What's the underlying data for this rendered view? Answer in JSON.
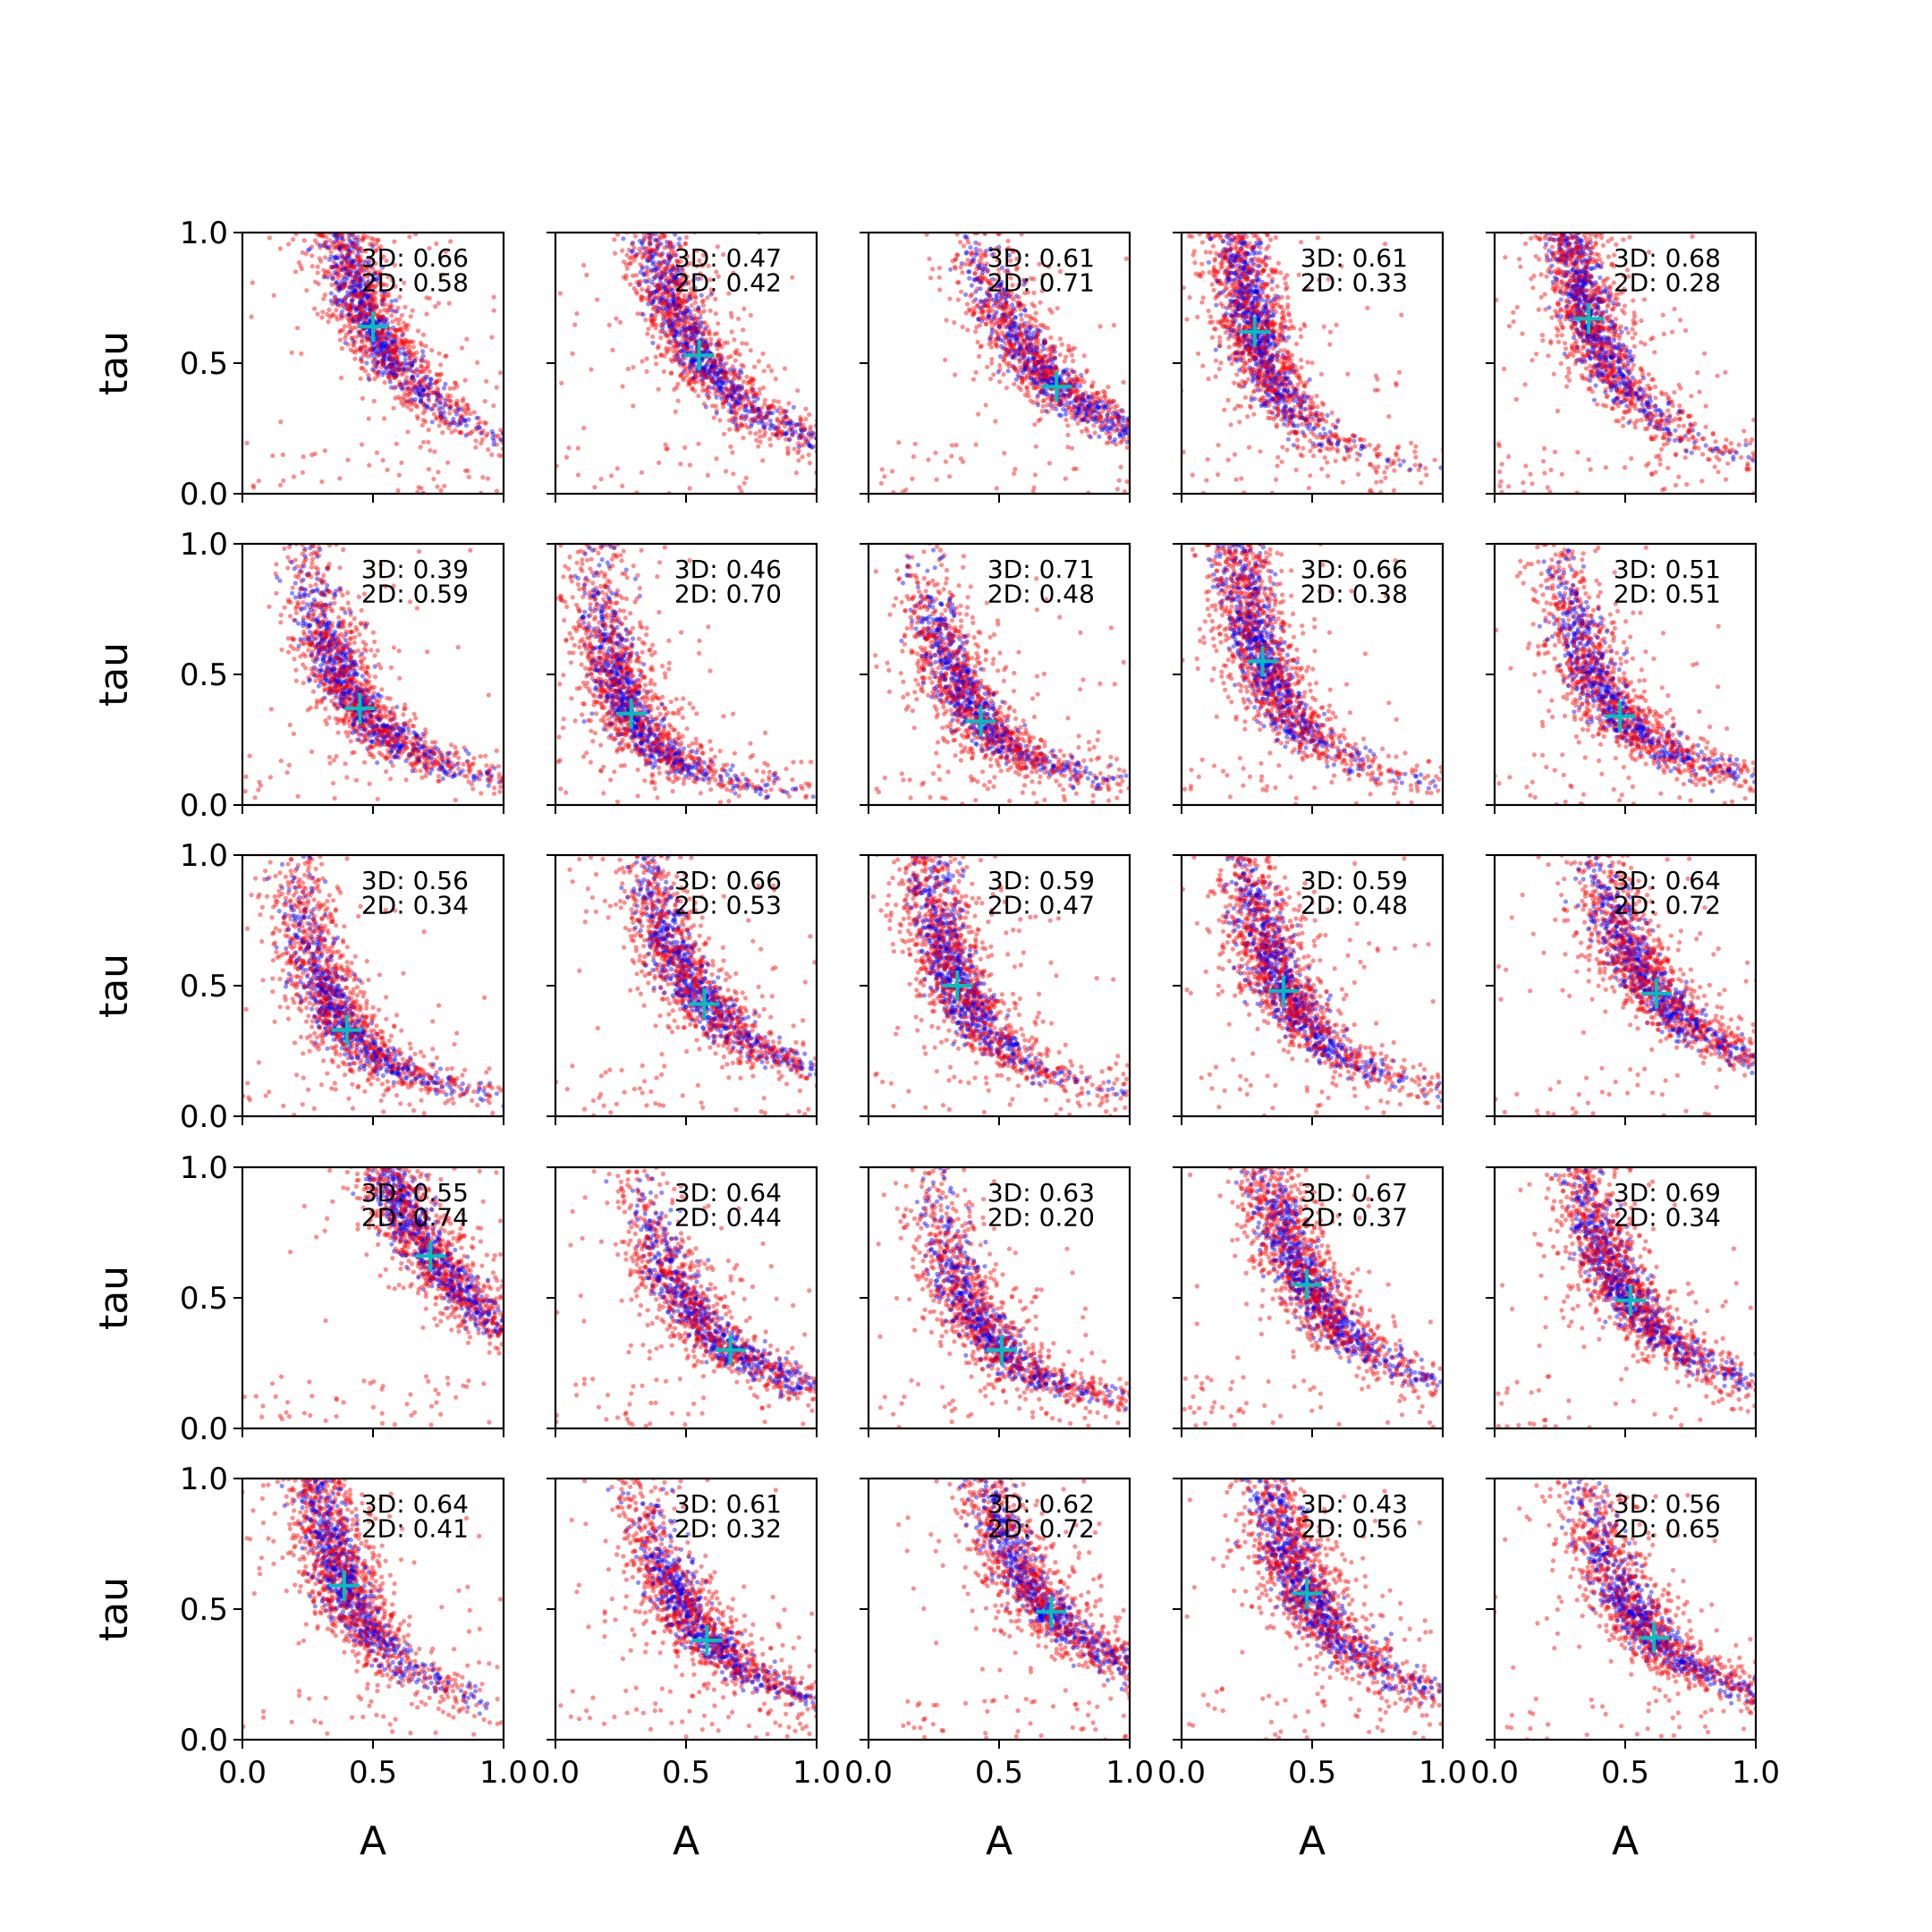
{
  "chart_data": {
    "type": "scatter",
    "layout": {
      "rows": 5,
      "cols": 5
    },
    "xlabel": "A",
    "ylabel": "tau",
    "xlim": [
      0.0,
      1.0
    ],
    "ylim": [
      0.0,
      1.0
    ],
    "xticks": [
      "0.0",
      "0.5",
      "1.0"
    ],
    "yticks": [
      "0.0",
      "0.5",
      "1.0"
    ],
    "colors": {
      "series_3d": "#0000ff",
      "series_2d": "#ff0000",
      "marker": "#00bfbf"
    },
    "panels": [
      {
        "ann3d": "3D: 0.66",
        "ann2d": "2D: 0.58",
        "truth": [
          0.5,
          0.64
        ]
      },
      {
        "ann3d": "3D: 0.47",
        "ann2d": "2D: 0.42",
        "truth": [
          0.55,
          0.53
        ]
      },
      {
        "ann3d": "3D: 0.61",
        "ann2d": "2D: 0.71",
        "truth": [
          0.72,
          0.41
        ]
      },
      {
        "ann3d": "3D: 0.61",
        "ann2d": "2D: 0.33",
        "truth": [
          0.28,
          0.62
        ]
      },
      {
        "ann3d": "3D: 0.68",
        "ann2d": "2D: 0.28",
        "truth": [
          0.36,
          0.67
        ]
      },
      {
        "ann3d": "3D: 0.39",
        "ann2d": "2D: 0.59",
        "truth": [
          0.45,
          0.37
        ]
      },
      {
        "ann3d": "3D: 0.46",
        "ann2d": "2D: 0.70",
        "truth": [
          0.29,
          0.35
        ]
      },
      {
        "ann3d": "3D: 0.71",
        "ann2d": "2D: 0.48",
        "truth": [
          0.43,
          0.32
        ]
      },
      {
        "ann3d": "3D: 0.66",
        "ann2d": "2D: 0.38",
        "truth": [
          0.31,
          0.55
        ]
      },
      {
        "ann3d": "3D: 0.51",
        "ann2d": "2D: 0.51",
        "truth": [
          0.48,
          0.34
        ]
      },
      {
        "ann3d": "3D: 0.56",
        "ann2d": "2D: 0.34",
        "truth": [
          0.4,
          0.33
        ]
      },
      {
        "ann3d": "3D: 0.66",
        "ann2d": "2D: 0.53",
        "truth": [
          0.57,
          0.43
        ]
      },
      {
        "ann3d": "3D: 0.59",
        "ann2d": "2D: 0.47",
        "truth": [
          0.34,
          0.5
        ]
      },
      {
        "ann3d": "3D: 0.59",
        "ann2d": "2D: 0.48",
        "truth": [
          0.39,
          0.48
        ]
      },
      {
        "ann3d": "3D: 0.64",
        "ann2d": "2D: 0.72",
        "truth": [
          0.62,
          0.47
        ]
      },
      {
        "ann3d": "3D: 0.55",
        "ann2d": "2D: 0.74",
        "truth": [
          0.72,
          0.66
        ]
      },
      {
        "ann3d": "3D: 0.64",
        "ann2d": "2D: 0.44",
        "truth": [
          0.67,
          0.3
        ]
      },
      {
        "ann3d": "3D: 0.63",
        "ann2d": "2D: 0.20",
        "truth": [
          0.51,
          0.3
        ]
      },
      {
        "ann3d": "3D: 0.67",
        "ann2d": "2D: 0.37",
        "truth": [
          0.48,
          0.55
        ]
      },
      {
        "ann3d": "3D: 0.69",
        "ann2d": "2D: 0.34",
        "truth": [
          0.52,
          0.49
        ]
      },
      {
        "ann3d": "3D: 0.64",
        "ann2d": "2D: 0.41",
        "truth": [
          0.39,
          0.59
        ]
      },
      {
        "ann3d": "3D: 0.61",
        "ann2d": "2D: 0.32",
        "truth": [
          0.58,
          0.38
        ]
      },
      {
        "ann3d": "3D: 0.62",
        "ann2d": "2D: 0.72",
        "truth": [
          0.7,
          0.49
        ]
      },
      {
        "ann3d": "3D: 0.43",
        "ann2d": "2D: 0.56",
        "truth": [
          0.48,
          0.56
        ]
      },
      {
        "ann3d": "3D: 0.56",
        "ann2d": "2D: 0.65",
        "truth": [
          0.61,
          0.39
        ]
      }
    ]
  }
}
